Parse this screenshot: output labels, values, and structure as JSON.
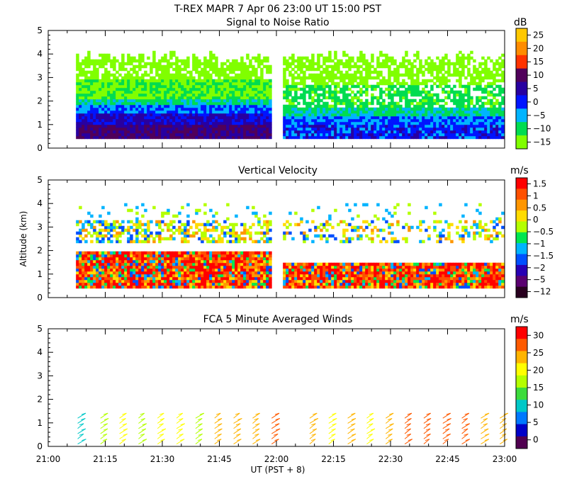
{
  "title": "T-REX   MAPR   7 Apr 06   23:00 UT   15:00   PST",
  "xlabel": "UT  (PST + 8)",
  "xticks": [
    "21:00",
    "21:15",
    "21:30",
    "21:45",
    "22:00",
    "22:15",
    "22:30",
    "22:45",
    "23:00"
  ],
  "chart_data": [
    {
      "type": "heatmap",
      "title": "Signal to Noise Ratio",
      "ylabel": "",
      "ylim": [
        0,
        5
      ],
      "yticks": [
        "0",
        "1",
        "2",
        "3",
        "4",
        "5"
      ],
      "colorbar_unit": "dB",
      "colorbar_labels": [
        "25",
        "20",
        "15",
        "10",
        "5",
        "0",
        "−5",
        "−10",
        "−15"
      ],
      "colorbar_colors": [
        "#ffc800",
        "#ff8c00",
        "#ff3200",
        "#50005a",
        "#2800a0",
        "#0014ff",
        "#00b4ff",
        "#00dc50",
        "#80ff00"
      ],
      "data_gap_ut": [
        "21:59",
        "22:01"
      ],
      "data_start_ut": "21:07",
      "data_end_ut": "23:00"
    },
    {
      "type": "heatmap",
      "title": "Vertical Velocity",
      "ylabel": "Altitude (km)",
      "ylim": [
        0,
        5
      ],
      "yticks": [
        "0",
        "1",
        "2",
        "3",
        "4",
        "5"
      ],
      "colorbar_unit": "m/s",
      "colorbar_labels": [
        "1.5",
        "1",
        "0.5",
        "0",
        "−0.5",
        "−1",
        "−1.5",
        "−2",
        "−5",
        "−12"
      ],
      "colorbar_colors": [
        "#ff0000",
        "#ff5000",
        "#ff9600",
        "#ffdc00",
        "#b4ff00",
        "#00e650",
        "#00b4ff",
        "#0050ff",
        "#2800b4",
        "#5a0070",
        "#28001e"
      ],
      "data_gap_ut": [
        "21:59",
        "22:01"
      ]
    },
    {
      "type": "scatter",
      "title": "FCA 5 Minute Averaged Winds",
      "ylabel": "",
      "ylim": [
        0,
        5
      ],
      "yticks": [
        "0",
        "1",
        "2",
        "3",
        "4",
        "5"
      ],
      "colorbar_unit": "m/s",
      "colorbar_labels": [
        "30",
        "25",
        "20",
        "15",
        "10",
        "5",
        "0"
      ],
      "colorbar_colors": [
        "#ff0000",
        "#ff5a00",
        "#ffb400",
        "#ffff00",
        "#b4ff00",
        "#3cdc3c",
        "#00c8c8",
        "#0078ff",
        "#0000c8",
        "#500050"
      ],
      "barb_times_ut": [
        "21:07",
        "21:13",
        "21:18",
        "21:23",
        "21:28",
        "21:33",
        "21:38",
        "21:43",
        "21:48",
        "21:53",
        "21:58",
        "22:08",
        "22:13",
        "22:18",
        "22:23",
        "22:28",
        "22:33",
        "22:38",
        "22:43",
        "22:48",
        "22:53",
        "22:58"
      ],
      "barb_speeds": [
        10,
        18,
        20,
        16,
        20,
        20,
        18,
        22,
        24,
        25,
        26,
        22,
        20,
        22,
        20,
        24,
        26,
        28,
        26,
        26,
        24,
        22
      ]
    }
  ]
}
